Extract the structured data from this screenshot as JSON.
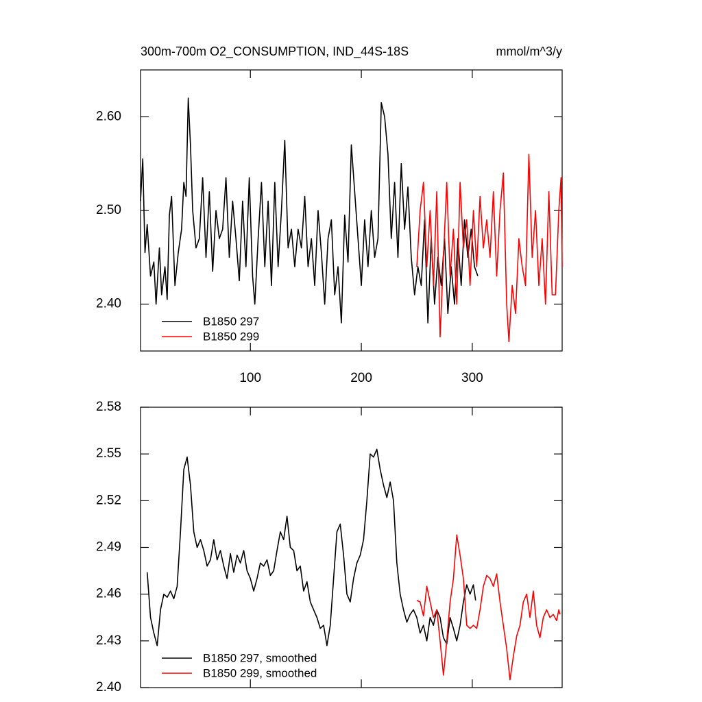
{
  "chart_data": [
    {
      "type": "line",
      "title": "300m-700m O2_CONSUMPTION, IND_44S-18S",
      "units": "mmol/m^3/y",
      "xlim": [
        1,
        381
      ],
      "xticks": [
        100,
        200,
        300
      ],
      "ylim": [
        2.35,
        2.65
      ],
      "yticks": [
        {
          "value": 2.4,
          "label": "2.40"
        },
        {
          "value": 2.5,
          "label": "2.50"
        },
        {
          "value": 2.6,
          "label": "2.60"
        }
      ],
      "legend": "lower left",
      "series": [
        {
          "name": "B1850 297",
          "color": "#000000",
          "x": [
            1,
            3,
            5,
            7,
            10,
            13,
            15,
            18,
            20,
            23,
            25,
            27,
            29,
            32,
            35,
            38,
            40,
            42,
            44,
            46,
            48,
            51,
            54,
            57,
            60,
            63,
            66,
            69,
            72,
            75,
            78,
            81,
            84,
            87,
            90,
            93,
            96,
            99,
            102,
            104,
            107,
            110,
            113,
            116,
            119,
            122,
            125,
            128,
            131,
            134,
            137,
            140,
            143,
            146,
            149,
            152,
            155,
            158,
            161,
            164,
            167,
            170,
            173,
            176,
            179,
            182,
            185,
            188,
            191,
            194,
            197,
            200,
            203,
            206,
            209,
            212,
            215,
            218,
            221,
            224,
            227,
            230,
            233,
            236,
            239,
            242,
            245,
            248,
            251,
            254,
            257,
            260,
            263,
            266,
            269,
            272,
            275,
            278,
            281,
            284,
            287,
            290,
            293,
            296,
            299,
            302,
            305
          ],
          "values": [
            2.51,
            2.555,
            2.455,
            2.485,
            2.43,
            2.445,
            2.4,
            2.46,
            2.41,
            2.44,
            2.405,
            2.495,
            2.515,
            2.42,
            2.455,
            2.48,
            2.53,
            2.515,
            2.62,
            2.57,
            2.5,
            2.46,
            2.47,
            2.535,
            2.45,
            2.52,
            2.435,
            2.5,
            2.47,
            2.48,
            2.535,
            2.45,
            2.51,
            2.47,
            2.425,
            2.51,
            2.44,
            2.535,
            2.43,
            2.4,
            2.47,
            2.53,
            2.44,
            2.51,
            2.42,
            2.53,
            2.44,
            2.5,
            2.575,
            2.46,
            2.48,
            2.44,
            2.48,
            2.46,
            2.515,
            2.44,
            2.47,
            2.42,
            2.5,
            2.455,
            2.4,
            2.47,
            2.49,
            2.41,
            2.44,
            2.38,
            2.495,
            2.445,
            2.57,
            2.52,
            2.47,
            2.42,
            2.49,
            2.44,
            2.5,
            2.45,
            2.47,
            2.615,
            2.6,
            2.56,
            2.47,
            2.53,
            2.45,
            2.55,
            2.48,
            2.525,
            2.45,
            2.41,
            2.44,
            2.42,
            2.49,
            2.38,
            2.47,
            2.4,
            2.45,
            2.42,
            2.47,
            2.39,
            2.44,
            2.4,
            2.47,
            2.42,
            2.49,
            2.45,
            2.48,
            2.44,
            2.43
          ]
        },
        {
          "name": "B1850 299",
          "color": "#ff0000",
          "x": [
            250,
            253,
            256,
            259,
            262,
            265,
            268,
            271,
            274,
            277,
            280,
            283,
            286,
            289,
            292,
            295,
            298,
            301,
            304,
            307,
            310,
            313,
            316,
            319,
            322,
            325,
            328,
            331,
            333,
            336,
            339,
            342,
            345,
            348,
            351,
            354,
            357,
            360,
            363,
            366,
            369,
            372,
            375,
            378,
            380,
            381
          ],
          "values": [
            2.44,
            2.5,
            2.53,
            2.44,
            2.5,
            2.42,
            2.52,
            2.365,
            2.45,
            2.53,
            2.43,
            2.48,
            2.4,
            2.53,
            2.46,
            2.49,
            2.42,
            2.5,
            2.44,
            2.515,
            2.46,
            2.49,
            2.45,
            2.52,
            2.43,
            2.5,
            2.54,
            2.4,
            2.36,
            2.42,
            2.39,
            2.47,
            2.44,
            2.42,
            2.56,
            2.45,
            2.5,
            2.42,
            2.47,
            2.4,
            2.52,
            2.41,
            2.41,
            2.5,
            2.535,
            2.44
          ]
        }
      ]
    },
    {
      "type": "line",
      "xlim": [
        1,
        381
      ],
      "xticks": [
        100,
        200,
        300
      ],
      "ylim": [
        2.4,
        2.58
      ],
      "yticks": [
        {
          "value": 2.4,
          "label": "2.40"
        },
        2.43,
        2.46,
        2.49,
        2.52,
        2.55,
        2.58
      ],
      "legend": "lower left",
      "series": [
        {
          "name": "B1850 297, smoothed",
          "color": "#000000",
          "x": [
            7,
            10,
            13,
            16,
            19,
            22,
            25,
            28,
            31,
            34,
            37,
            40,
            43,
            46,
            49,
            52,
            55,
            58,
            61,
            64,
            67,
            70,
            73,
            76,
            79,
            82,
            85,
            88,
            91,
            94,
            97,
            100,
            103,
            106,
            109,
            112,
            115,
            118,
            121,
            124,
            127,
            130,
            133,
            136,
            139,
            142,
            145,
            148,
            151,
            154,
            157,
            160,
            163,
            166,
            169,
            172,
            175,
            178,
            181,
            184,
            187,
            190,
            193,
            196,
            199,
            202,
            205,
            208,
            211,
            214,
            217,
            220,
            223,
            226,
            229,
            232,
            235,
            238,
            241,
            244,
            247,
            250,
            253,
            256,
            259,
            262,
            265,
            268,
            271,
            274,
            277,
            280,
            283,
            286,
            289,
            292,
            295,
            298,
            301,
            303
          ],
          "values": [
            2.474,
            2.445,
            2.435,
            2.427,
            2.45,
            2.46,
            2.458,
            2.462,
            2.457,
            2.465,
            2.5,
            2.54,
            2.548,
            2.53,
            2.5,
            2.49,
            2.495,
            2.488,
            2.478,
            2.482,
            2.495,
            2.482,
            2.488,
            2.478,
            2.47,
            2.486,
            2.474,
            2.485,
            2.48,
            2.488,
            2.475,
            2.47,
            2.462,
            2.47,
            2.48,
            2.478,
            2.482,
            2.472,
            2.475,
            2.488,
            2.5,
            2.495,
            2.51,
            2.49,
            2.488,
            2.475,
            2.478,
            2.462,
            2.468,
            2.455,
            2.45,
            2.445,
            2.438,
            2.44,
            2.427,
            2.44,
            2.47,
            2.5,
            2.505,
            2.485,
            2.46,
            2.455,
            2.47,
            2.48,
            2.485,
            2.495,
            2.52,
            2.55,
            2.548,
            2.553,
            2.54,
            2.53,
            2.522,
            2.532,
            2.52,
            2.48,
            2.46,
            2.45,
            2.442,
            2.447,
            2.45,
            2.445,
            2.435,
            2.44,
            2.43,
            2.445,
            2.44,
            2.45,
            2.445,
            2.432,
            2.428,
            2.445,
            2.438,
            2.43,
            2.44,
            2.455,
            2.466,
            2.46,
            2.466,
            2.456
          ]
        },
        {
          "name": "B1850 299, smoothed",
          "color": "#ff0000",
          "x": [
            250,
            253,
            256,
            259,
            262,
            265,
            268,
            271,
            274,
            277,
            280,
            283,
            286,
            289,
            292,
            295,
            298,
            301,
            304,
            307,
            310,
            313,
            316,
            319,
            322,
            325,
            328,
            331,
            334,
            337,
            340,
            343,
            346,
            349,
            352,
            355,
            358,
            361,
            364,
            367,
            370,
            373,
            376,
            378,
            379
          ],
          "values": [
            2.456,
            2.455,
            2.446,
            2.465,
            2.455,
            2.445,
            2.45,
            2.43,
            2.408,
            2.43,
            2.455,
            2.47,
            2.498,
            2.485,
            2.47,
            2.44,
            2.438,
            2.44,
            2.438,
            2.45,
            2.465,
            2.472,
            2.47,
            2.465,
            2.473,
            2.455,
            2.44,
            2.425,
            2.405,
            2.42,
            2.433,
            2.44,
            2.455,
            2.46,
            2.445,
            2.462,
            2.44,
            2.432,
            2.445,
            2.45,
            2.445,
            2.447,
            2.443,
            2.45,
            2.447
          ]
        }
      ]
    }
  ]
}
